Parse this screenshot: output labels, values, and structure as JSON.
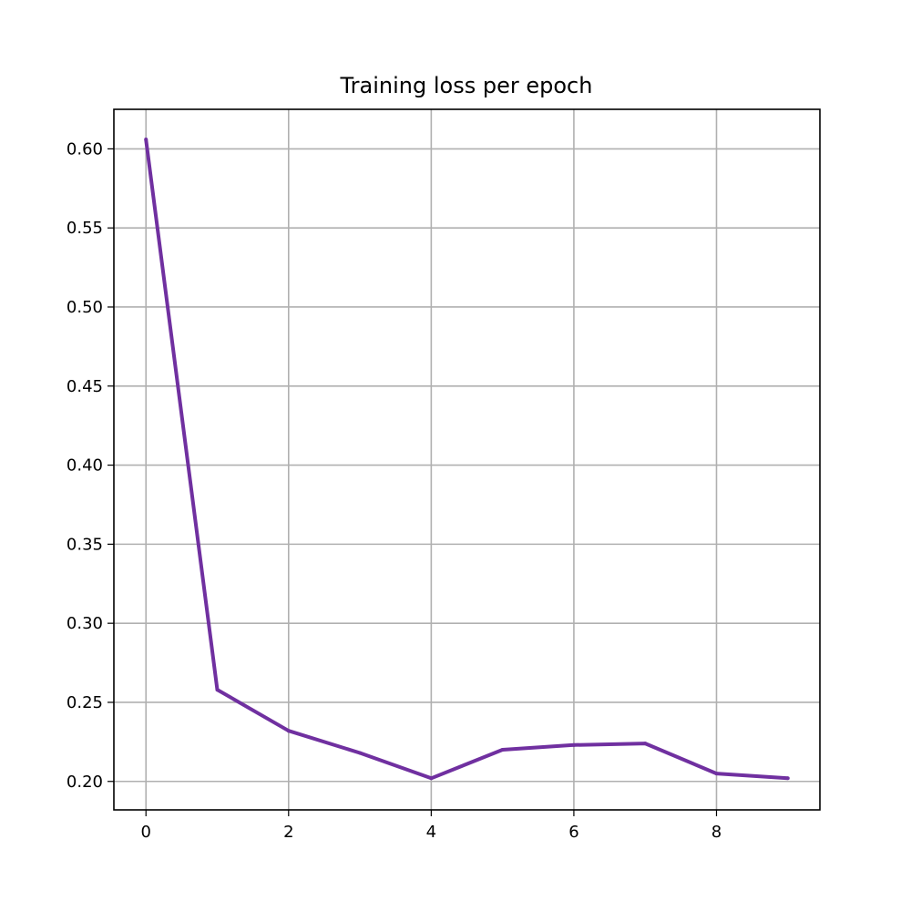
{
  "chart_data": {
    "type": "line",
    "title": "Training loss per epoch",
    "xlabel": "",
    "ylabel": "",
    "xlim": [
      -0.45,
      9.45
    ],
    "ylim": [
      0.182,
      0.625
    ],
    "xticks": [
      0,
      2,
      4,
      6,
      8
    ],
    "xtick_labels": [
      "0",
      "2",
      "4",
      "6",
      "8"
    ],
    "yticks": [
      0.2,
      0.25,
      0.3,
      0.35,
      0.4,
      0.45,
      0.5,
      0.55,
      0.6
    ],
    "ytick_labels": [
      "0.20",
      "0.25",
      "0.30",
      "0.35",
      "0.40",
      "0.45",
      "0.50",
      "0.55",
      "0.60"
    ],
    "grid": true,
    "series": [
      {
        "x": [
          0,
          1,
          2,
          3,
          4,
          5,
          6,
          7,
          8,
          9
        ],
        "values": [
          0.606,
          0.258,
          0.232,
          0.218,
          0.202,
          0.22,
          0.223,
          0.224,
          0.205,
          0.202
        ],
        "color": "#7030a0"
      }
    ]
  }
}
